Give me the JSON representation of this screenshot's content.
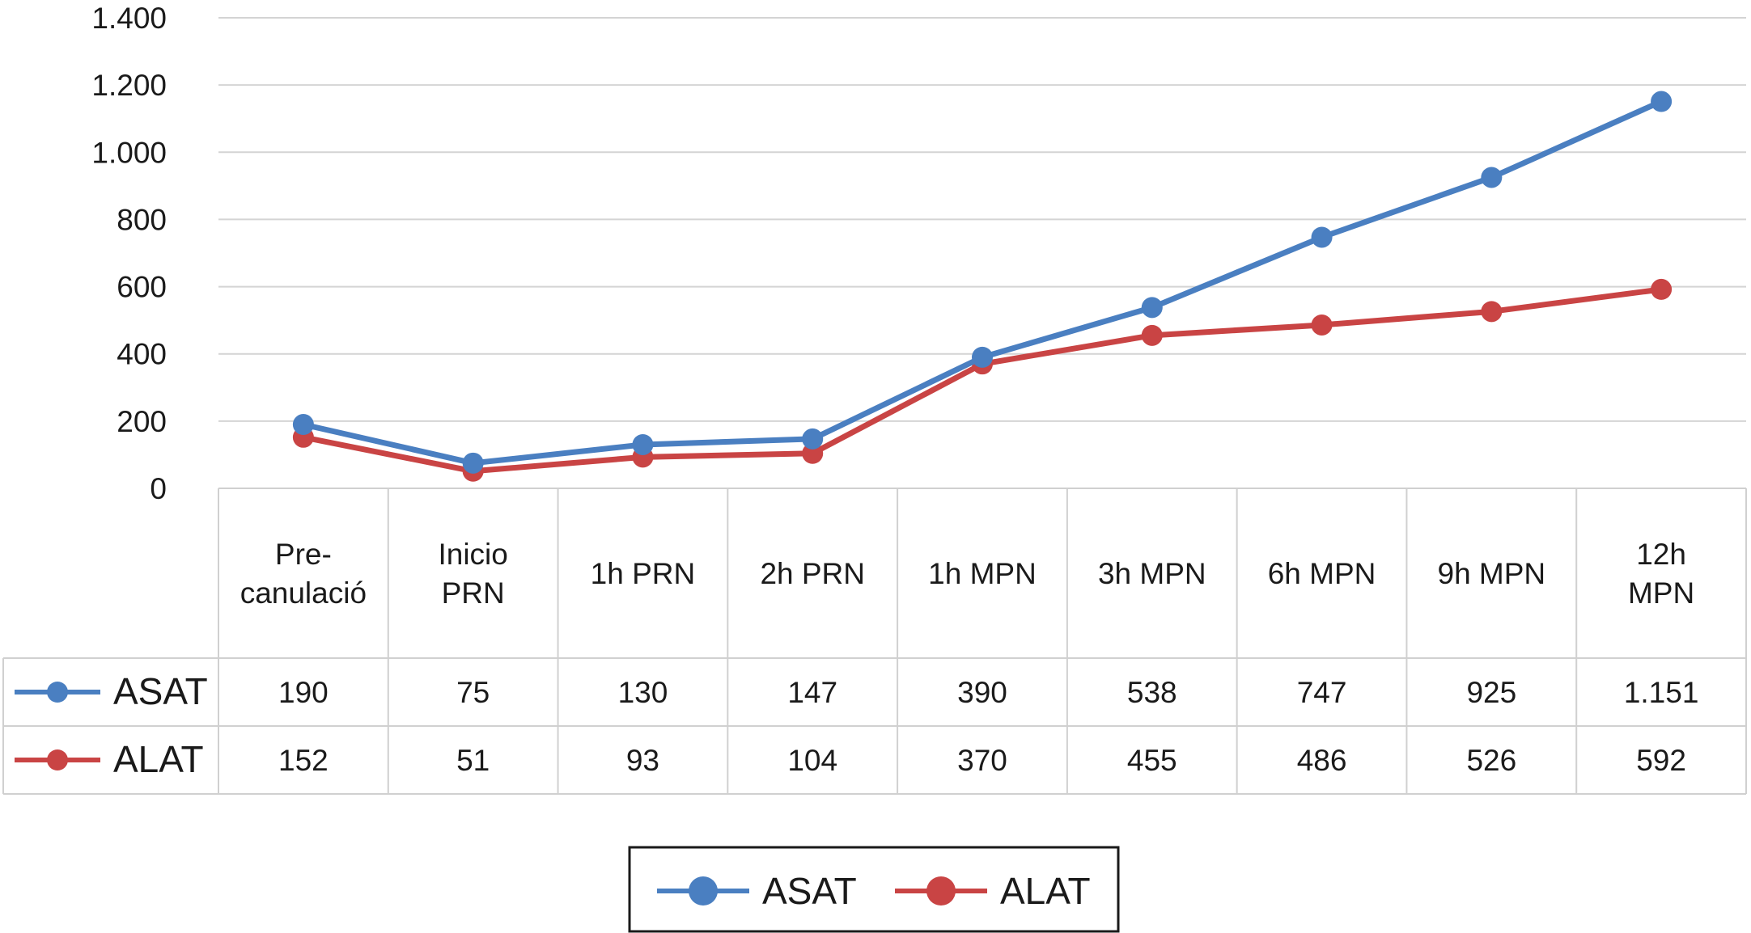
{
  "chart_data": {
    "type": "line",
    "categories": [
      "Pre-\ncanulació",
      "Inicio\nPRN",
      "1h PRN",
      "2h PRN",
      "1h MPN",
      "3h MPN",
      "6h MPN",
      "9h MPN",
      "12h\nMPN"
    ],
    "series": [
      {
        "name": "ASAT",
        "color": "#4a7fc1",
        "values": [
          190,
          75,
          130,
          147,
          390,
          538,
          747,
          925,
          1151
        ],
        "labels": [
          "190",
          "75",
          "130",
          "147",
          "390",
          "538",
          "747",
          "925",
          "1.151"
        ]
      },
      {
        "name": "ALAT",
        "color": "#c94444",
        "values": [
          152,
          51,
          93,
          104,
          370,
          455,
          486,
          526,
          592
        ],
        "labels": [
          "152",
          "51",
          "93",
          "104",
          "370",
          "455",
          "486",
          "526",
          "592"
        ]
      }
    ],
    "yticks": [
      0,
      200,
      400,
      600,
      800,
      1000,
      1200,
      1400
    ],
    "ytick_labels": [
      "0",
      "200",
      "400",
      "600",
      "800",
      "1.000",
      "1.200",
      "1.400"
    ],
    "ylim": [
      0,
      1400
    ],
    "grid": true,
    "data_table": true,
    "legend": {
      "position": "bottom-center",
      "entries": [
        "ASAT",
        "ALAT"
      ]
    }
  }
}
